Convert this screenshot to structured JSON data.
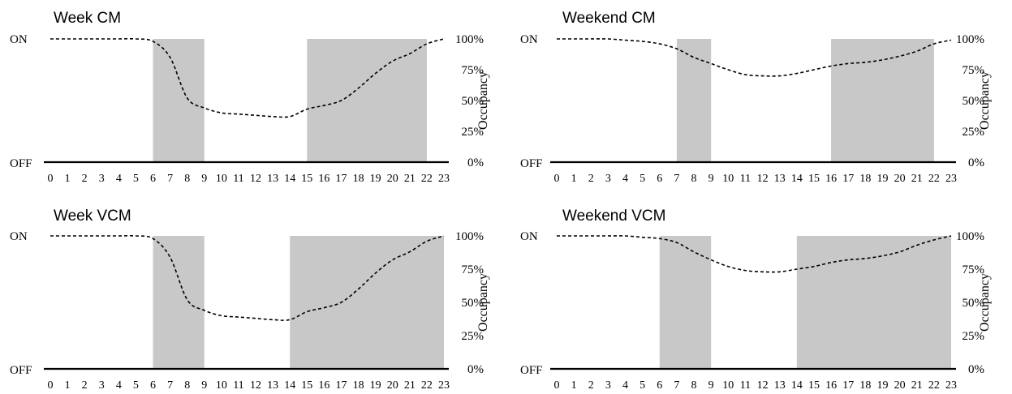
{
  "chart_data": [
    {
      "type": "line",
      "title": "Week CM",
      "x": [
        0,
        1,
        2,
        3,
        4,
        5,
        6,
        7,
        8,
        9,
        10,
        11,
        12,
        13,
        14,
        15,
        16,
        17,
        18,
        19,
        20,
        21,
        22,
        23
      ],
      "y_percent": [
        100,
        100,
        100,
        100,
        100,
        100,
        98,
        85,
        52,
        44,
        40,
        39,
        38,
        37,
        37,
        43,
        46,
        50,
        60,
        72,
        82,
        88,
        96,
        100
      ],
      "shaded_hours": [
        [
          6,
          9
        ],
        [
          15,
          22
        ]
      ],
      "left_labels": {
        "top": "ON",
        "bottom": "OFF"
      },
      "right_ticks": [
        "100%",
        "75%",
        "50%",
        "25%",
        "0%"
      ],
      "ylabel": "Occupancy",
      "xlim": [
        0,
        23
      ],
      "ylim": [
        0,
        100
      ]
    },
    {
      "type": "line",
      "title": "Weekend CM",
      "x": [
        0,
        1,
        2,
        3,
        4,
        5,
        6,
        7,
        8,
        9,
        10,
        11,
        12,
        13,
        14,
        15,
        16,
        17,
        18,
        19,
        20,
        21,
        22,
        23
      ],
      "y_percent": [
        100,
        100,
        100,
        100,
        99,
        98,
        96,
        92,
        85,
        80,
        75,
        71,
        70,
        70,
        72,
        75,
        78,
        80,
        81,
        83,
        86,
        90,
        96,
        99
      ],
      "shaded_hours": [
        [
          7,
          9
        ],
        [
          16,
          22
        ]
      ],
      "left_labels": {
        "top": "ON",
        "bottom": "OFF"
      },
      "right_ticks": [
        "100%",
        "75%",
        "50%",
        "25%",
        "0%"
      ],
      "ylabel": "Occupancy",
      "xlim": [
        0,
        23
      ],
      "ylim": [
        0,
        100
      ]
    },
    {
      "type": "line",
      "title": "Week VCM",
      "x": [
        0,
        1,
        2,
        3,
        4,
        5,
        6,
        7,
        8,
        9,
        10,
        11,
        12,
        13,
        14,
        15,
        16,
        17,
        18,
        19,
        20,
        21,
        22,
        23
      ],
      "y_percent": [
        100,
        100,
        100,
        100,
        100,
        100,
        98,
        84,
        52,
        44,
        40,
        39,
        38,
        37,
        37,
        43,
        46,
        50,
        60,
        72,
        82,
        88,
        96,
        100
      ],
      "shaded_hours": [
        [
          6,
          9
        ],
        [
          14,
          23
        ]
      ],
      "left_labels": {
        "top": "ON",
        "bottom": "OFF"
      },
      "right_ticks": [
        "100%",
        "75%",
        "50%",
        "25%",
        "0%"
      ],
      "ylabel": "Occupancy",
      "xlim": [
        0,
        23
      ],
      "ylim": [
        0,
        100
      ]
    },
    {
      "type": "line",
      "title": "Weekend VCM",
      "x": [
        0,
        1,
        2,
        3,
        4,
        5,
        6,
        7,
        8,
        9,
        10,
        11,
        12,
        13,
        14,
        15,
        16,
        17,
        18,
        19,
        20,
        21,
        22,
        23
      ],
      "y_percent": [
        100,
        100,
        100,
        100,
        100,
        99,
        98,
        95,
        88,
        82,
        77,
        74,
        73,
        73,
        75,
        77,
        80,
        82,
        83,
        85,
        88,
        93,
        97,
        100
      ],
      "shaded_hours": [
        [
          6,
          9
        ],
        [
          14,
          23
        ]
      ],
      "left_labels": {
        "top": "ON",
        "bottom": "OFF"
      },
      "right_ticks": [
        "100%",
        "75%",
        "50%",
        "25%",
        "0%"
      ],
      "ylabel": "Occupancy",
      "xlim": [
        0,
        23
      ],
      "ylim": [
        0,
        100
      ]
    }
  ]
}
